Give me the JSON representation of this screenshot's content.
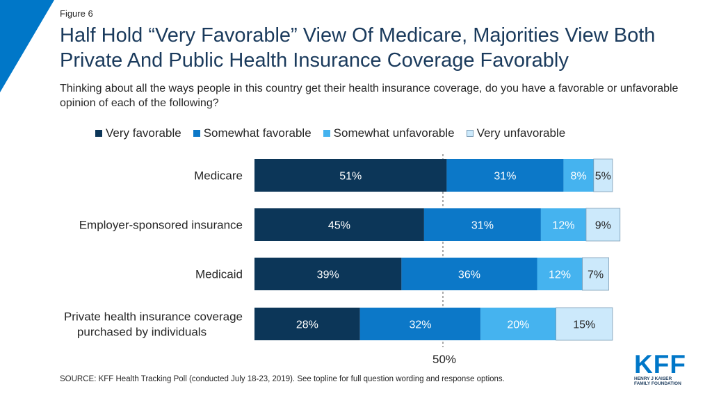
{
  "figure_label": "Figure 6",
  "title": "Half Hold “Very Favorable” View Of Medicare, Majorities View Both Private And Public Health Insurance Coverage Favorably",
  "subtitle": "Thinking about all the ways people in this country get their health insurance coverage, do you have a favorable or unfavorable opinion of each of the following?",
  "source": "SOURCE: KFF Health Tracking Poll (conducted July 18-23, 2019). See topline for full question wording and response options.",
  "logo": {
    "word": "KFF",
    "line1": "HENRY J KAISER",
    "line2": "FAMILY FOUNDATION"
  },
  "colors": {
    "accent": "#0077c8",
    "title": "#1a3a5c"
  },
  "chart_data": {
    "type": "bar",
    "orientation": "horizontal",
    "stacked": true,
    "categories": [
      [
        "Medicare"
      ],
      [
        "Employer-sponsored insurance"
      ],
      [
        "Medicaid"
      ],
      [
        "Private health insurance coverage",
        "purchased by individuals"
      ]
    ],
    "series": [
      {
        "name": "Very favorable",
        "color": "#0c3658",
        "text_color": "#ffffff",
        "values": [
          51,
          45,
          39,
          28
        ]
      },
      {
        "name": "Somewhat favorable",
        "color": "#0c78c8",
        "text_color": "#ffffff",
        "values": [
          31,
          31,
          36,
          32
        ]
      },
      {
        "name": "Somewhat unfavorable",
        "color": "#45b3ef",
        "text_color": "#ffffff",
        "values": [
          8,
          12,
          12,
          20
        ]
      },
      {
        "name": "Very unfavorable",
        "color": "#cce9fb",
        "text_color": "#262626",
        "values": [
          5,
          9,
          7,
          15
        ]
      }
    ],
    "reference_line": {
      "value": 50,
      "label": "50%",
      "style": "dashed"
    },
    "xlim": [
      0,
      100
    ],
    "legend_position": "top",
    "grid": false
  }
}
